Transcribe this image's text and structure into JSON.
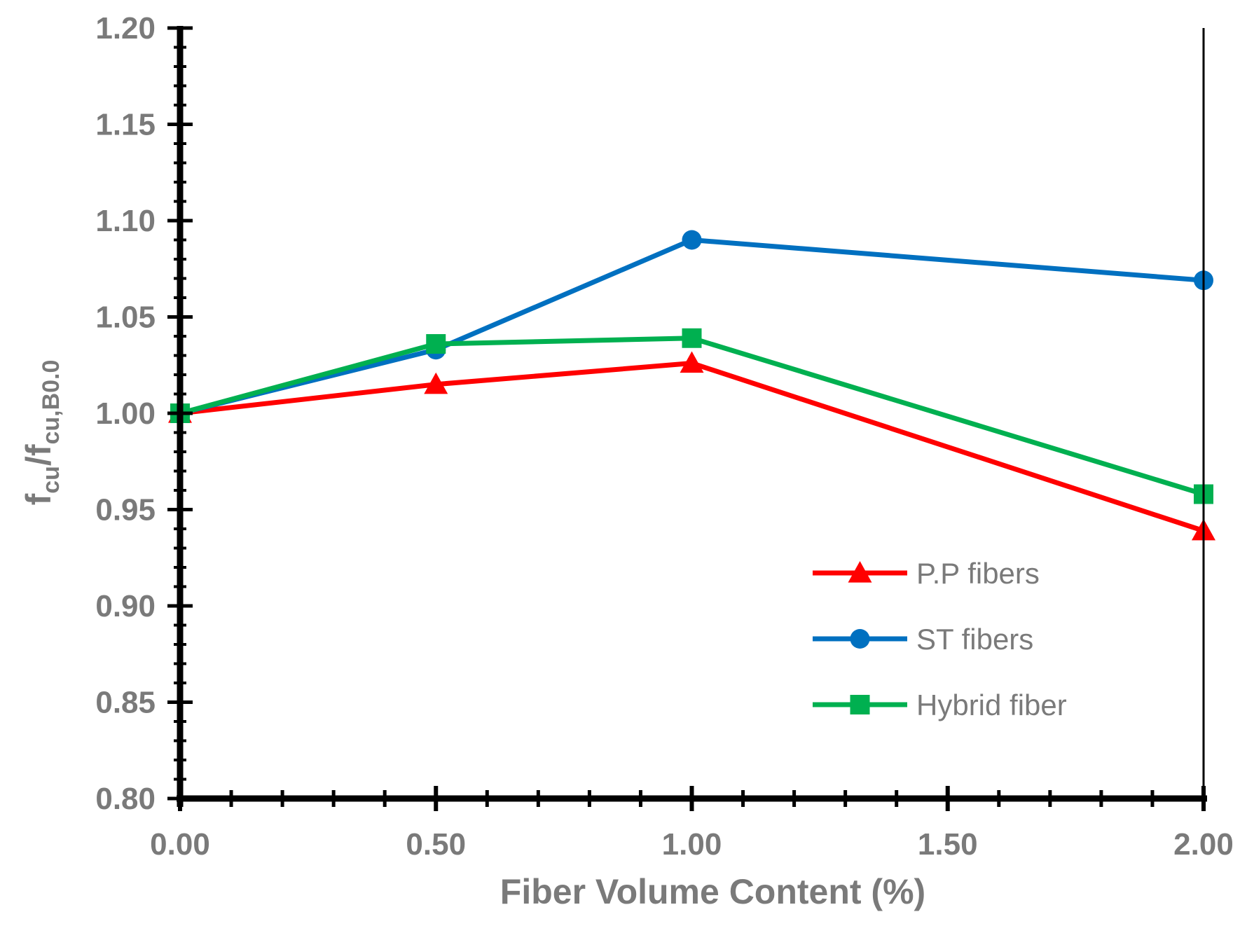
{
  "chart_data": {
    "type": "line",
    "x_categories": [
      "0.00",
      "0.50",
      "1.00",
      "1.50",
      "2.00"
    ],
    "x_values_plotted": [
      0.0,
      0.5,
      1.0,
      2.0
    ],
    "xlabel": "Fiber Volume Content (%)",
    "ylabel": {
      "parts": [
        {
          "text": "f",
          "style": "normal"
        },
        {
          "text": "cu",
          "style": "sub"
        },
        {
          "text": "/f",
          "style": "normal"
        },
        {
          "text": "cu,B0.0",
          "style": "sub"
        }
      ]
    },
    "ylim": [
      0.8,
      1.2
    ],
    "y_ticks": [
      "0.80",
      "0.85",
      "0.90",
      "0.95",
      "1.00",
      "1.05",
      "1.10",
      "1.15",
      "1.20"
    ],
    "legend_position": "bottom-right",
    "series": [
      {
        "name": "P.P fibers",
        "color": "#ff0000",
        "marker": "triangle",
        "x": [
          0.0,
          0.5,
          1.0,
          2.0
        ],
        "values": [
          1.0,
          1.015,
          1.026,
          0.939
        ]
      },
      {
        "name": "ST fibers",
        "color": "#0070c0",
        "marker": "circle",
        "x": [
          0.0,
          0.5,
          1.0,
          2.0
        ],
        "values": [
          1.0,
          1.033,
          1.09,
          1.069
        ]
      },
      {
        "name": "Hybrid fiber",
        "color": "#00b050",
        "marker": "square",
        "x": [
          0.0,
          0.5,
          1.0,
          2.0
        ],
        "values": [
          1.0,
          1.036,
          1.039,
          0.958
        ]
      }
    ]
  }
}
